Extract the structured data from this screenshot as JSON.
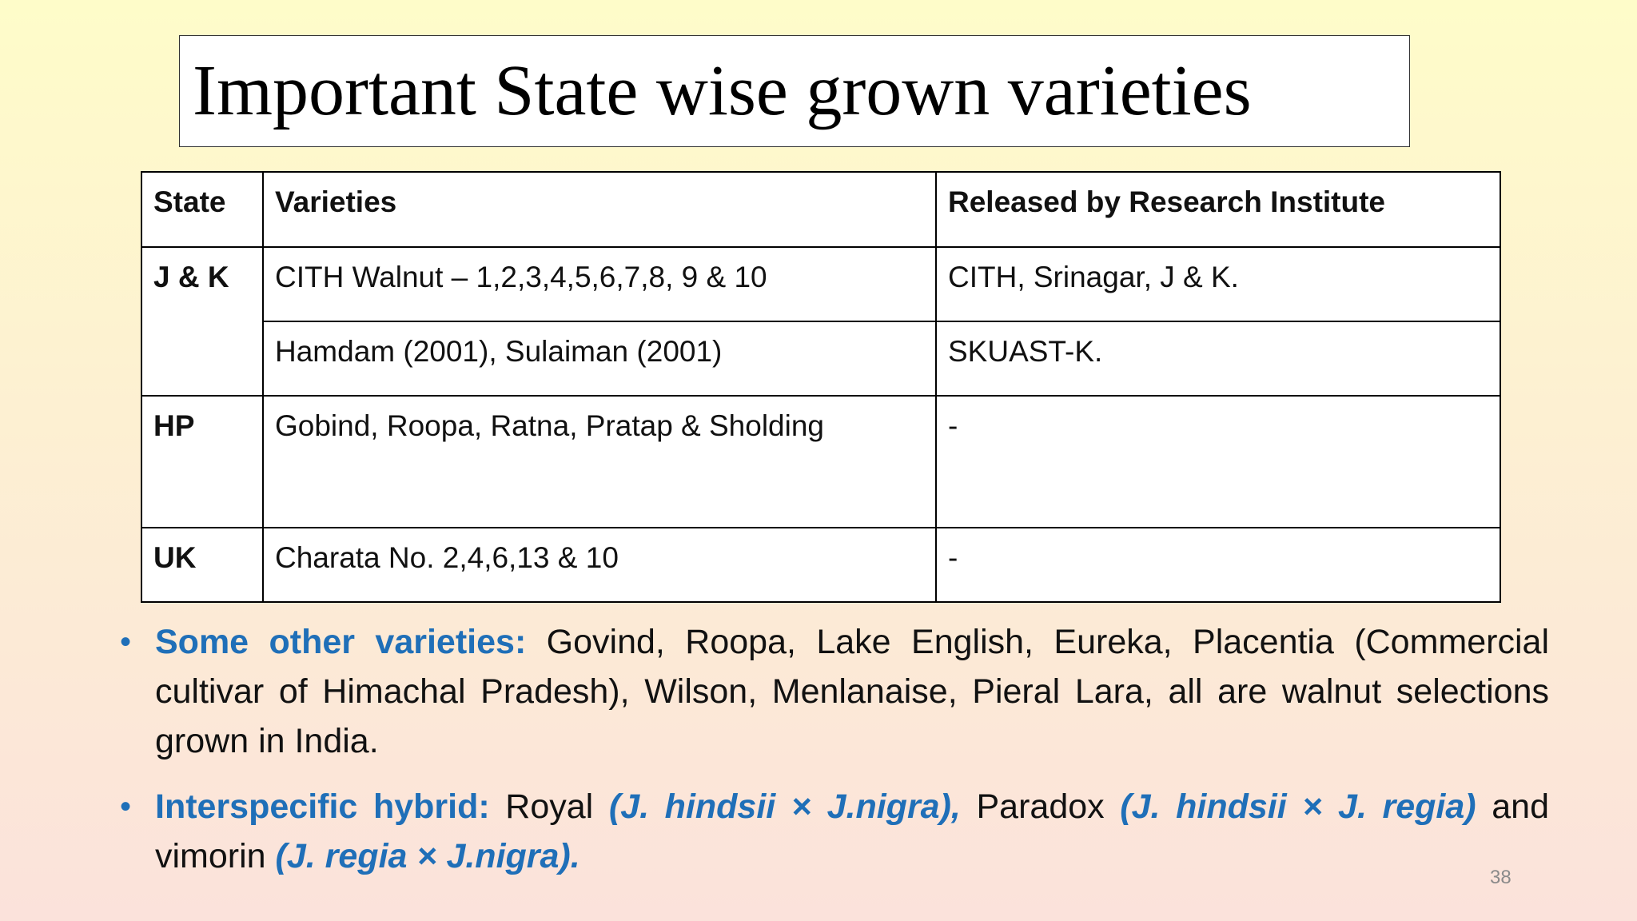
{
  "slide": {
    "title": "Important State wise grown varieties",
    "page_number": "38"
  },
  "table": {
    "headers": [
      "State",
      "Varieties",
      "Released by Research Institute"
    ],
    "rows": [
      {
        "state": "J & K",
        "varieties": "CITH Walnut – 1,2,3,4,5,6,7,8, 9 & 10",
        "institute": "CITH, Srinagar, J & K."
      },
      {
        "state": "",
        "varieties": "Hamdam (2001), Sulaiman (2001)",
        "institute": "SKUAST-K."
      },
      {
        "state": "HP",
        "varieties": "Gobind, Roopa, Ratna, Pratap & Sholding",
        "institute": "-"
      },
      {
        "state": "UK",
        "varieties": "Charata No. 2,4,6,13 & 10",
        "institute": "-"
      }
    ]
  },
  "bullets": {
    "other": {
      "lead": "Some other varieties:",
      "text": " Govind, Roopa, Lake English, Eureka, Placentia (Commercial cultivar of Himachal Pradesh), Wilson, Menlanaise, Pieral Lara, all are walnut selections grown in India."
    },
    "hybrid": {
      "lead": "Interspecific hybrid:",
      "t1": " Royal ",
      "s1": "(J. hindsii × J.nigra),",
      "t2": " Paradox ",
      "s2": "(J. hindsii × J. regia)",
      "t3": " and vimorin ",
      "s3": "(J. regia × J.nigra)."
    }
  },
  "colors": {
    "accent": "#1f6fb8",
    "background_top": "#fefcc9",
    "background_bottom": "#fbe2db"
  }
}
